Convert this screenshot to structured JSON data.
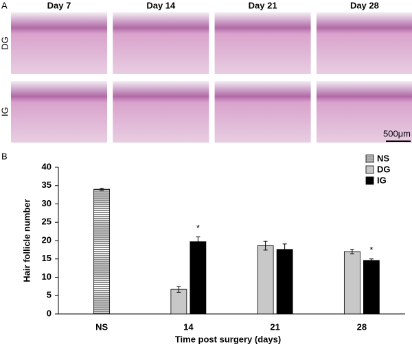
{
  "panel_a": {
    "label": "A",
    "columns": [
      "Day 7",
      "Day 14",
      "Day 21",
      "Day 28"
    ],
    "rows": [
      "DG",
      "IG"
    ],
    "scale_bar": "500μm"
  },
  "panel_b": {
    "label": "B"
  },
  "chart_data": {
    "type": "bar",
    "ylabel": "Hair follicle number",
    "xlabel": "Time post surgery (days)",
    "categories": [
      "NS",
      "14",
      "21",
      "28"
    ],
    "series": [
      {
        "name": "NS",
        "color": "#444444",
        "hatch": true,
        "values": [
          34,
          null,
          null,
          null
        ],
        "errors": [
          0.3,
          null,
          null,
          null
        ],
        "markers": [
          null,
          null,
          null,
          null
        ]
      },
      {
        "name": "DG",
        "color": "#c8c8c8",
        "values": [
          null,
          6.7,
          18.6,
          17
        ],
        "errors": [
          null,
          0.8,
          1.2,
          0.6
        ],
        "markers": [
          null,
          null,
          null,
          null
        ]
      },
      {
        "name": "IG",
        "color": "#000000",
        "values": [
          null,
          19.7,
          17.6,
          14.6
        ],
        "errors": [
          null,
          1.3,
          1.5,
          0.4
        ],
        "markers": [
          null,
          "*",
          null,
          "*"
        ]
      }
    ],
    "ylim": [
      0,
      40
    ],
    "yticks": [
      0,
      5,
      10,
      15,
      20,
      25,
      30,
      35,
      40
    ],
    "grid": false,
    "legend": "top-right"
  }
}
